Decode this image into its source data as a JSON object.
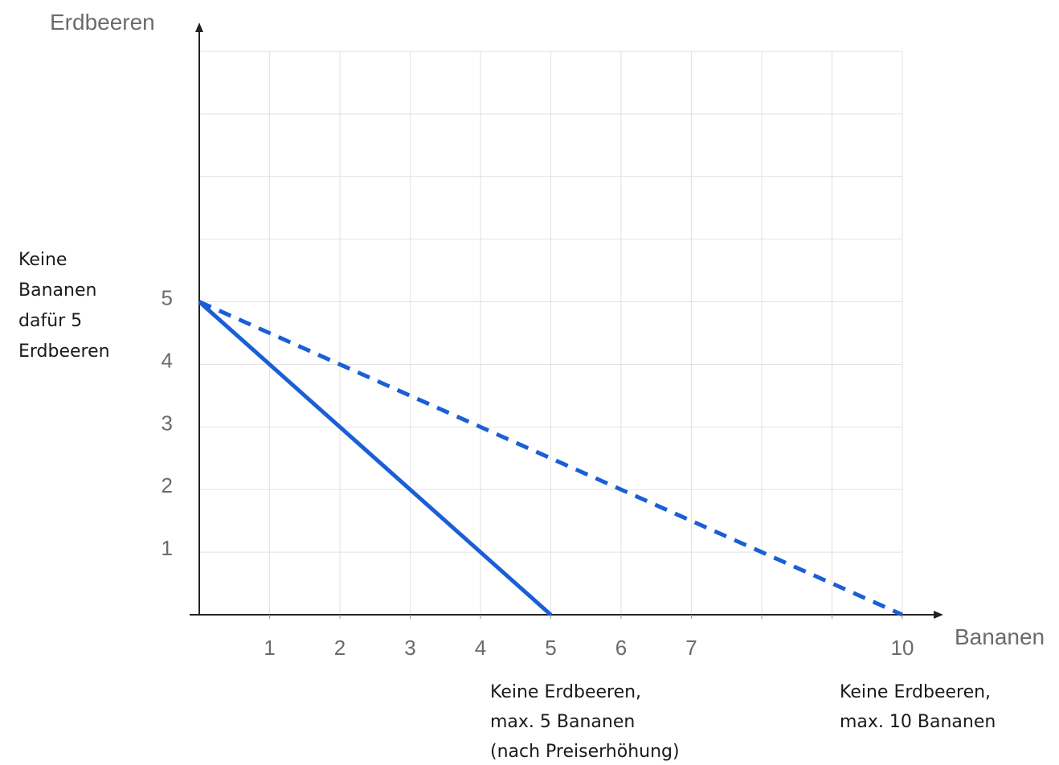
{
  "chart_data": {
    "type": "line",
    "xlabel": "Bananen",
    "ylabel": "Erdbeeren",
    "xlim": [
      0,
      10
    ],
    "ylim": [
      0,
      9
    ],
    "grid": true,
    "x_ticks": [
      "1",
      "2",
      "3",
      "4",
      "5",
      "6",
      "7",
      "10"
    ],
    "x_tick_values": [
      1,
      2,
      3,
      4,
      5,
      6,
      7,
      10
    ],
    "y_ticks": [
      "1",
      "2",
      "3",
      "4",
      "5"
    ],
    "y_tick_values": [
      1,
      2,
      3,
      4,
      5
    ],
    "series": [
      {
        "style": "solid",
        "color": "#1a5fd6",
        "points": [
          [
            0,
            5
          ],
          [
            5,
            0
          ]
        ]
      },
      {
        "style": "dashed",
        "color": "#1a5fd6",
        "points": [
          [
            0,
            5
          ],
          [
            10,
            0
          ]
        ]
      }
    ],
    "annotations": {
      "y_intercept": [
        "Keine",
        "Bananen",
        "dafür 5",
        "Erdbeeren"
      ],
      "x_intercept_solid": [
        "Keine Erdbeeren,",
        "max. 5 Bananen",
        "(nach Preiserhöhung)"
      ],
      "x_intercept_dashed": [
        "Keine Erdbeeren,",
        "max. 10 Bananen"
      ]
    }
  },
  "colors": {
    "line": "#1a5fd6",
    "grid": "#e2e2e2",
    "axis": "#222222",
    "tick_text": "#6b6b6b"
  }
}
